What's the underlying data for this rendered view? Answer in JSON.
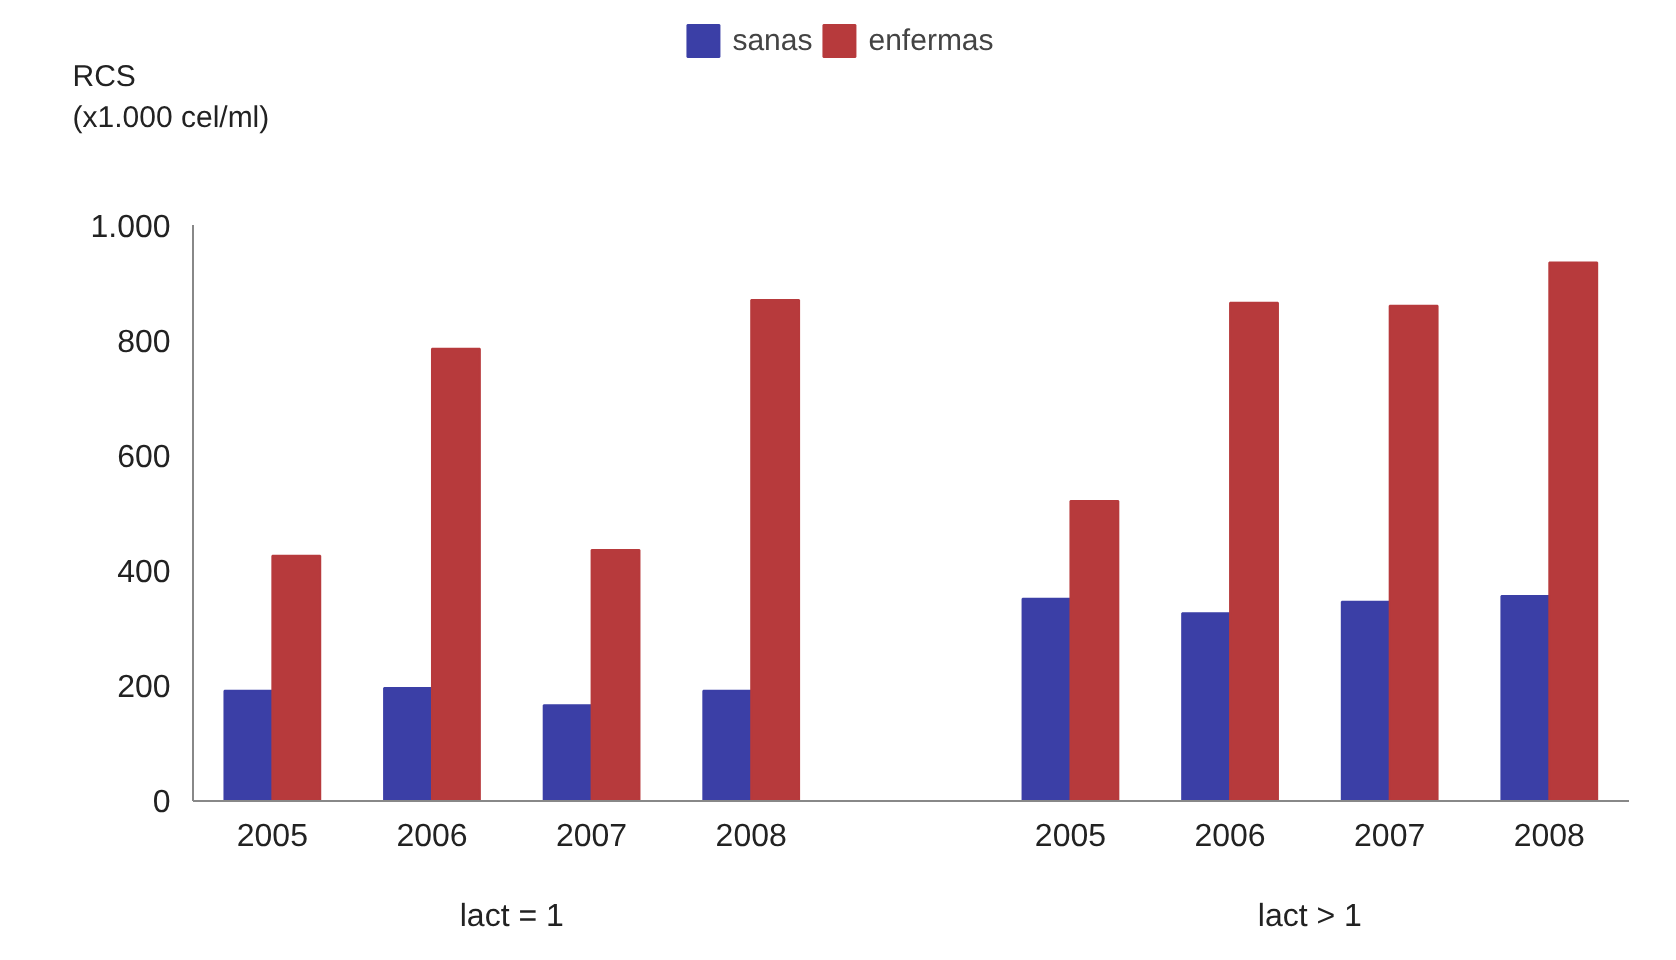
{
  "chart_data": {
    "type": "bar",
    "ylabel": "RCS\n(x1.000 cel/ml)",
    "categories": [
      "2005",
      "2006",
      "2007",
      "2008",
      null,
      "2005",
      "2006",
      "2007",
      "2008"
    ],
    "series": [
      {
        "name": "sanas",
        "color": "#3b3fa6",
        "values": [
          190,
          195,
          165,
          190,
          null,
          350,
          325,
          345,
          355
        ]
      },
      {
        "name": "enfermas",
        "color": "#b73a3c",
        "values": [
          425,
          785,
          435,
          870,
          null,
          520,
          865,
          860,
          935
        ]
      }
    ],
    "ylim": [
      0,
      1000
    ],
    "yticks": [
      0,
      200,
      400,
      600,
      800,
      {
        "value": 1000,
        "label": "1.000"
      }
    ],
    "annotations": [
      "lact = 1",
      "lact > 1"
    ],
    "grid": false,
    "legend": "top"
  }
}
